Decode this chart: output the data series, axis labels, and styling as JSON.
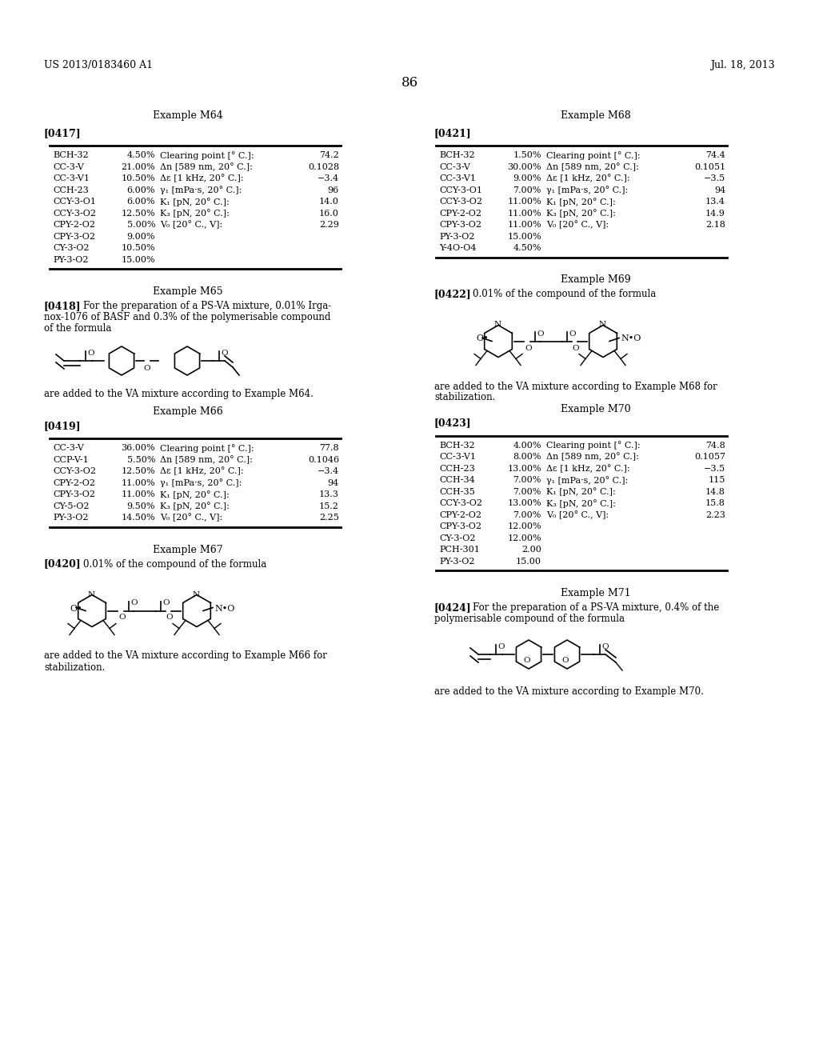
{
  "page_header_left": "US 2013/0183460 A1",
  "page_header_right": "Jul. 18, 2013",
  "page_number": "86",
  "background_color": "#ffffff",
  "example_m64_title": "Example M64",
  "example_m64_tag": "[0417]",
  "example_m64_left_compounds": [
    "BCH-32",
    "CC-3-V",
    "CC-3-V1",
    "CCH-23",
    "CCY-3-O1",
    "CCY-3-O2",
    "CPY-2-O2",
    "CPY-3-O2",
    "CY-3-O2",
    "PY-3-O2"
  ],
  "example_m64_left_pcts": [
    "4.50%",
    "21.00%",
    "10.50%",
    "6.00%",
    "6.00%",
    "12.50%",
    "5.00%",
    "9.00%",
    "10.50%",
    "15.00%"
  ],
  "example_m64_right_props": [
    "Clearing point [° C.]:",
    "Δn [589 nm, 20° C.]:",
    "Δε [1 kHz, 20° C.]:",
    "γ₁ [mPa·s, 20° C.]:",
    "K₁ [pN, 20° C.]:",
    "K₃ [pN, 20° C.]:",
    "V₀ [20° C., V]:"
  ],
  "example_m64_right_vals": [
    "74.2",
    "0.1028",
    "−3.4",
    "96",
    "14.0",
    "16.0",
    "2.29"
  ],
  "example_m65_title": "Example M65",
  "example_m65_tag": "[0418]",
  "example_m65_text1": "For the preparation of a PS-VA mixture, 0.01% Irga-",
  "example_m65_text2": "nox-1076 of BASF and 0.3% of the polymerisable compound",
  "example_m65_text3": "of the formula",
  "example_m65_footer": "are added to the VA mixture according to Example M64.",
  "example_m66_title": "Example M66",
  "example_m66_tag": "[0419]",
  "example_m66_left_compounds": [
    "CC-3-V",
    "CCP-V-1",
    "CCY-3-O2",
    "CPY-2-O2",
    "CPY-3-O2",
    "CY-5-O2",
    "PY-3-O2"
  ],
  "example_m66_left_pcts": [
    "36.00%",
    "5.50%",
    "12.50%",
    "11.00%",
    "11.00%",
    "9.50%",
    "14.50%"
  ],
  "example_m66_right_props": [
    "Clearing point [° C.]:",
    "Δn [589 nm, 20° C.]:",
    "Δε [1 kHz, 20° C.]:",
    "γ₁ [mPa·s, 20° C.]:",
    "K₁ [pN, 20° C.]:",
    "K₃ [pN, 20° C.]:",
    "V₀ [20° C., V]:"
  ],
  "example_m66_right_vals": [
    "77.8",
    "0.1046",
    "−3.4",
    "94",
    "13.3",
    "15.2",
    "2.25"
  ],
  "example_m67_title": "Example M67",
  "example_m67_tag": "[0420]",
  "example_m67_text": "0.01% of the compound of the formula",
  "example_m67_footer1": "are added to the VA mixture according to Example M66 for",
  "example_m67_footer2": "stabilization.",
  "example_m68_title": "Example M68",
  "example_m68_tag": "[0421]",
  "example_m68_left_compounds": [
    "BCH-32",
    "CC-3-V",
    "CC-3-V1",
    "CCY-3-O1",
    "CCY-3-O2",
    "CPY-2-O2",
    "CPY-3-O2",
    "PY-3-O2",
    "Y-4O-O4"
  ],
  "example_m68_left_pcts": [
    "1.50%",
    "30.00%",
    "9.00%",
    "7.00%",
    "11.00%",
    "11.00%",
    "11.00%",
    "15.00%",
    "4.50%"
  ],
  "example_m68_right_props": [
    "Clearing point [° C.]:",
    "Δn [589 nm, 20° C.]:",
    "Δε [1 kHz, 20° C.]:",
    "γ₁ [mPa·s, 20° C.]:",
    "K₁ [pN, 20° C.]:",
    "K₃ [pN, 20° C.]:",
    "V₀ [20° C., V]:"
  ],
  "example_m68_right_vals": [
    "74.4",
    "0.1051",
    "−3.5",
    "94",
    "13.4",
    "14.9",
    "2.18"
  ],
  "example_m69_title": "Example M69",
  "example_m69_tag": "[0422]",
  "example_m69_text": "0.01% of the compound of the formula",
  "example_m69_footer1": "are added to the VA mixture according to Example M68 for",
  "example_m69_footer2": "stabilization.",
  "example_m70_title": "Example M70",
  "example_m70_tag": "[0423]",
  "example_m70_left_compounds": [
    "BCH-32",
    "CC-3-V1",
    "CCH-23",
    "CCH-34",
    "CCH-35",
    "CCY-3-O2",
    "CPY-2-O2",
    "CPY-3-O2",
    "CY-3-O2",
    "PCH-301",
    "PY-3-O2"
  ],
  "example_m70_left_pcts": [
    "4.00%",
    "8.00%",
    "13.00%",
    "7.00%",
    "7.00%",
    "13.00%",
    "7.00%",
    "12.00%",
    "12.00%",
    "2.00",
    "15.00"
  ],
  "example_m70_right_props": [
    "Clearing point [° C.]:",
    "Δn [589 nm, 20° C.]:",
    "Δε [1 kHz, 20° C.]:",
    "γ₁ [mPa·s, 20° C.]:",
    "K₁ [pN, 20° C.]:",
    "K₃ [pN, 20° C.]:",
    "V₀ [20° C., V]:"
  ],
  "example_m70_right_vals": [
    "74.8",
    "0.1057",
    "−3.5",
    "115",
    "14.8",
    "15.8",
    "2.23"
  ],
  "example_m71_title": "Example M71",
  "example_m71_tag": "[0424]",
  "example_m71_text1": "For the preparation of a PS-VA mixture, 0.4% of the",
  "example_m71_text2": "polymerisable compound of the formula",
  "example_m71_footer": "are added to the VA mixture according to Example M70."
}
